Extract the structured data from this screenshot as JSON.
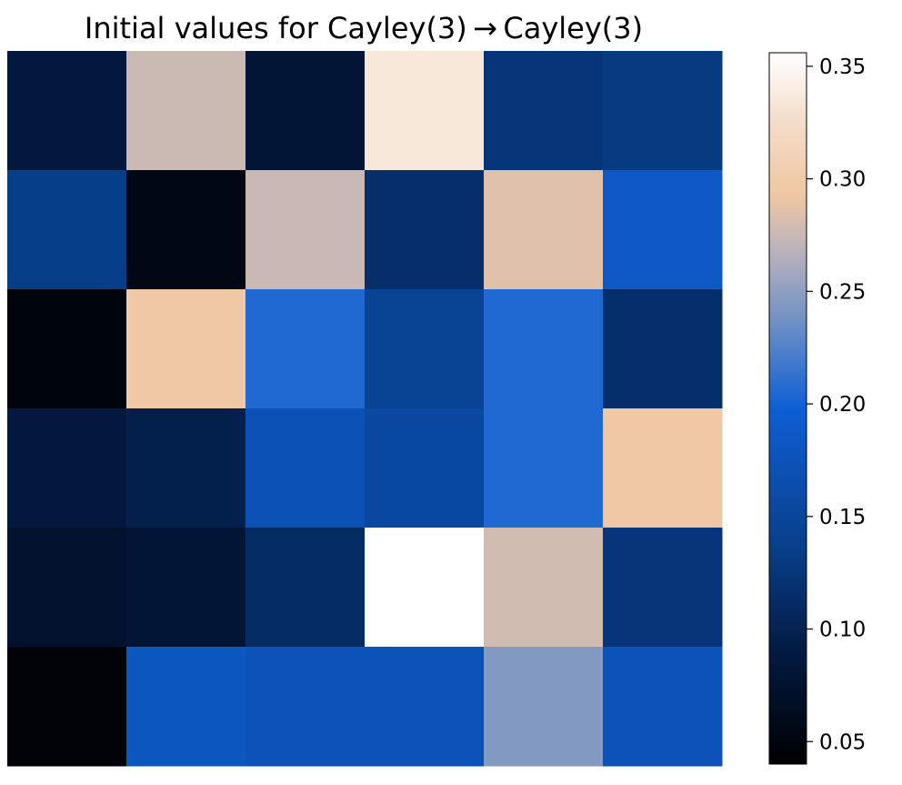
{
  "chart_data": {
    "type": "heatmap",
    "title": "Initial values for Cayley(3) → Cayley(3)",
    "xlabel": "",
    "ylabel": "",
    "rows": 6,
    "cols": 6,
    "values": [
      [
        0.085,
        0.276,
        0.08,
        0.335,
        0.125,
        0.13
      ],
      [
        0.135,
        0.055,
        0.275,
        0.115,
        0.285,
        0.185
      ],
      [
        0.05,
        0.295,
        0.205,
        0.145,
        0.205,
        0.115
      ],
      [
        0.085,
        0.095,
        0.17,
        0.155,
        0.205,
        0.295
      ],
      [
        0.075,
        0.08,
        0.11,
        0.356,
        0.278,
        0.125
      ],
      [
        0.045,
        0.18,
        0.175,
        0.175,
        0.245,
        0.175
      ]
    ],
    "colorbar": {
      "min": 0.04,
      "max": 0.356,
      "ticks": [
        0.05,
        0.1,
        0.15,
        0.2,
        0.25,
        0.3,
        0.35
      ],
      "tick_labels": [
        "0.05",
        "0.10",
        "0.15",
        "0.20",
        "0.25",
        "0.30",
        "0.35"
      ],
      "colormap": [
        {
          "v": 0.0,
          "color": "#000000"
        },
        {
          "v": 0.15,
          "color": "#02193f"
        },
        {
          "v": 0.3,
          "color": "#073e88"
        },
        {
          "v": 0.5,
          "color": "#0e5fd5"
        },
        {
          "v": 0.62,
          "color": "#6d90c6"
        },
        {
          "v": 0.72,
          "color": "#b9b2bc"
        },
        {
          "v": 0.8,
          "color": "#f0c7a2"
        },
        {
          "v": 0.9,
          "color": "#f4dcc8"
        },
        {
          "v": 1.0,
          "color": "#ffffff"
        }
      ]
    },
    "grid": false,
    "axes_ticks": false
  }
}
